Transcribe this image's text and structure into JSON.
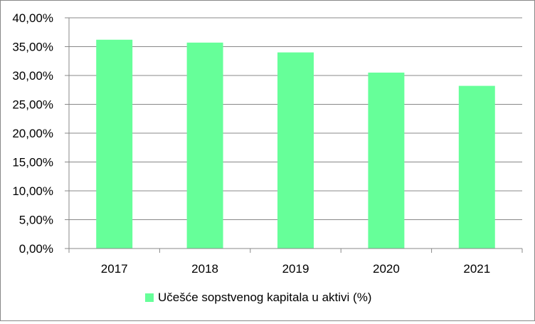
{
  "chart_data": {
    "type": "bar",
    "categories": [
      "2017",
      "2018",
      "2019",
      "2020",
      "2021"
    ],
    "series": [
      {
        "name": "Učešće sopstvenog kapitala u aktivi (%)",
        "values": [
          36.2,
          35.7,
          34.0,
          30.5,
          28.2
        ],
        "color": "#66ff99"
      }
    ],
    "ylim": [
      0,
      40
    ],
    "yticks": [
      "0,00%",
      "5,00%",
      "10,00%",
      "15,00%",
      "20,00%",
      "25,00%",
      "30,00%",
      "35,00%",
      "40,00%"
    ],
    "grid": true,
    "legend_position": "bottom"
  }
}
